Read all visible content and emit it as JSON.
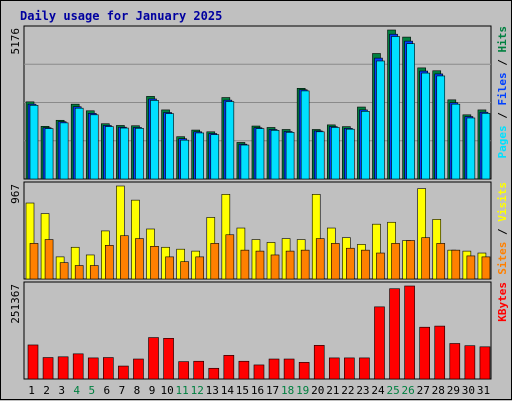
{
  "title": "Daily usage for January 2025",
  "colors": {
    "title": "#0000a0",
    "background": "#c0c0c0",
    "plot_bg": "#c0c0c0",
    "hits": "#008040",
    "files": "#0040ff",
    "pages": "#00e0ff",
    "visits": "#ffff00",
    "sites": "#ff8000",
    "kbytes": "#ff0000",
    "weekend_label": "#008040",
    "weekday_label": "#000000"
  },
  "chart_data": [
    {
      "type": "bar",
      "panel": "hits-files-pages",
      "ylabel_top": "5176",
      "legend": [
        "Pages",
        "Files",
        "Hits"
      ],
      "categories": [
        "1",
        "2",
        "3",
        "4",
        "5",
        "6",
        "7",
        "8",
        "9",
        "10",
        "11",
        "12",
        "13",
        "14",
        "15",
        "16",
        "17",
        "18",
        "19",
        "20",
        "21",
        "22",
        "23",
        "24",
        "25",
        "26",
        "27",
        "28",
        "29",
        "30",
        "31"
      ],
      "weekend": [
        4,
        5,
        11,
        12,
        18,
        19,
        25,
        26
      ],
      "ymax": 5176,
      "series": [
        {
          "name": "Hits",
          "values": [
            2680,
            1830,
            2040,
            2600,
            2370,
            1920,
            1860,
            1850,
            2870,
            2400,
            1470,
            1700,
            1640,
            2830,
            1270,
            1840,
            1790,
            1720,
            3150,
            1720,
            1880,
            1820,
            2500,
            4360,
            5176,
            4930,
            3860,
            3760,
            2750,
            2230,
            2400
          ]
        },
        {
          "name": "Files",
          "values": [
            2600,
            1780,
            1990,
            2510,
            2280,
            1860,
            1800,
            1790,
            2780,
            2310,
            1400,
            1640,
            1580,
            2740,
            1210,
            1780,
            1720,
            1650,
            3100,
            1670,
            1820,
            1760,
            2400,
            4200,
            5030,
            4790,
            3750,
            3650,
            2650,
            2170,
            2320
          ]
        },
        {
          "name": "Pages",
          "values": [
            2560,
            1750,
            1950,
            2460,
            2230,
            1820,
            1770,
            1760,
            2730,
            2270,
            1350,
            1600,
            1540,
            2690,
            1180,
            1750,
            1690,
            1620,
            3060,
            1640,
            1790,
            1730,
            2350,
            4100,
            4950,
            4700,
            3680,
            3580,
            2600,
            2120,
            2280
          ]
        }
      ]
    },
    {
      "type": "bar",
      "panel": "visits-sites",
      "ylabel_top": "967",
      "legend": [
        "Sites",
        "Visits"
      ],
      "ymax": 967,
      "series": [
        {
          "name": "Visits",
          "values": [
            790,
            680,
            230,
            330,
            250,
            500,
            967,
            820,
            520,
            330,
            310,
            290,
            640,
            880,
            530,
            410,
            380,
            420,
            410,
            880,
            530,
            430,
            360,
            570,
            590,
            400,
            940,
            620,
            300,
            290,
            270
          ]
        },
        {
          "name": "Sites",
          "values": [
            370,
            410,
            170,
            140,
            140,
            350,
            450,
            420,
            340,
            230,
            180,
            230,
            370,
            460,
            300,
            290,
            250,
            290,
            300,
            420,
            370,
            320,
            300,
            270,
            370,
            400,
            430,
            370,
            300,
            240,
            230
          ]
        }
      ]
    },
    {
      "type": "bar",
      "panel": "kbytes",
      "ylabel_top": "251367",
      "legend": [
        "KBytes"
      ],
      "ymax": 251367,
      "series": [
        {
          "name": "KBytes",
          "values": [
            92000,
            58000,
            60000,
            68000,
            57000,
            58000,
            35000,
            54000,
            112000,
            110000,
            47000,
            48000,
            29000,
            64000,
            48000,
            38000,
            54000,
            54000,
            45000,
            91000,
            57000,
            57000,
            57000,
            195000,
            244000,
            251367,
            140000,
            143000,
            96000,
            90000,
            87000
          ]
        }
      ]
    }
  ]
}
